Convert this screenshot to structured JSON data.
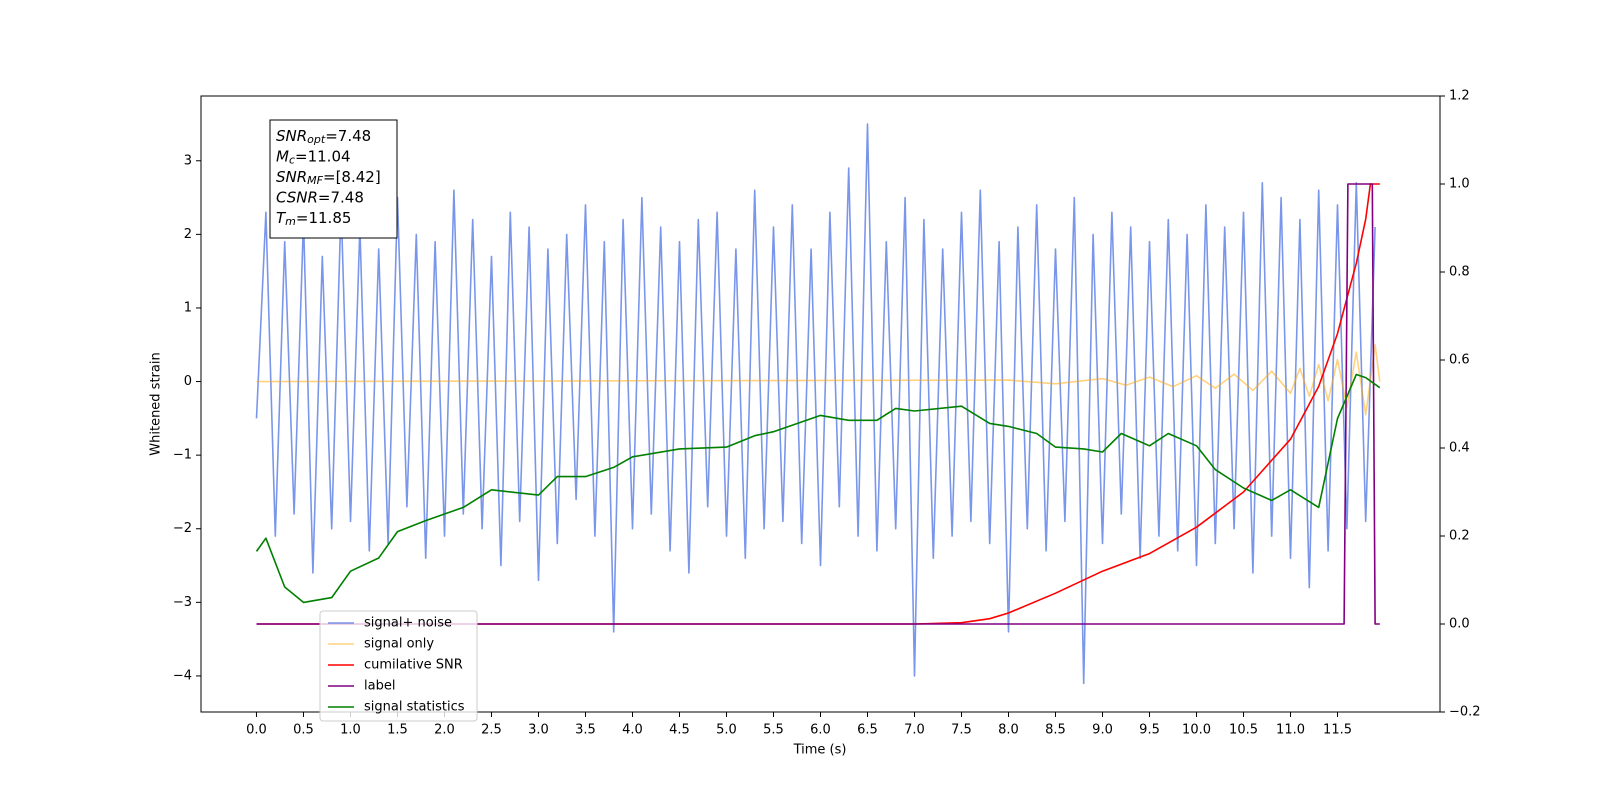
{
  "chart_data": {
    "type": "line",
    "xlabel": "Time (s)",
    "ylabel": "Whitened strain",
    "xlim": [
      -0.59,
      12.59
    ],
    "ylim": [
      -4.49,
      3.88
    ],
    "y2lim": [
      -0.2,
      1.2
    ],
    "xticks": [
      {
        "value": 0,
        "label": "0.0"
      },
      0.5,
      {
        "value": 1,
        "label": "1.0"
      },
      1.5,
      {
        "value": 2,
        "label": "2.0"
      },
      2.5,
      {
        "value": 3,
        "label": "3.0"
      },
      3.5,
      {
        "value": 4,
        "label": "4.0"
      },
      4.5,
      {
        "value": 5,
        "label": "5.0"
      },
      5.5,
      {
        "value": 6,
        "label": "6.0"
      },
      6.5,
      {
        "value": 7,
        "label": "7.0"
      },
      7.5,
      {
        "value": 8,
        "label": "8.0"
      },
      8.5,
      {
        "value": 9,
        "label": "9.0"
      },
      9.5,
      {
        "value": 10,
        "label": "10.0"
      },
      10.5,
      {
        "value": 11,
        "label": "11.0"
      },
      11.5
    ],
    "yticks": [
      {
        "value": -4,
        "label": "−4"
      },
      {
        "value": -3,
        "label": "−3"
      },
      {
        "value": -2,
        "label": "−2"
      },
      {
        "value": -1,
        "label": "−1"
      },
      0,
      1,
      2,
      3
    ],
    "y2ticks": [
      {
        "value": -0.2,
        "label": "−0.2"
      },
      {
        "value": 0,
        "label": "0.0"
      },
      0.2,
      0.4,
      0.6,
      0.8,
      {
        "value": 1,
        "label": "1.0"
      },
      1.2
    ],
    "annotations": [
      {
        "base": "SNR",
        "sub": "opt",
        "value": "=7.48"
      },
      {
        "base": "M",
        "sub": "c",
        "value": "=11.04"
      },
      {
        "base": "SNR",
        "sub": "MF",
        "value": "=[8.42]"
      },
      {
        "base": "CSNR",
        "value": "=7.48"
      },
      {
        "base": "T",
        "sub": "m",
        "value": "=11.85"
      }
    ],
    "series": [
      {
        "name": "signal+ noise",
        "color": "#4169e1",
        "opacity": 0.7,
        "x": [
          0,
          0.1,
          0.2,
          0.3,
          0.4,
          0.5,
          0.6,
          0.7,
          0.8,
          0.9,
          1,
          1.1,
          1.2,
          1.3,
          1.4,
          1.5,
          1.6,
          1.7,
          1.8,
          1.9,
          2,
          2.1,
          2.2,
          2.3,
          2.4,
          2.5,
          2.6,
          2.7,
          2.8,
          2.9,
          3,
          3.1,
          3.2,
          3.3,
          3.4,
          3.5,
          3.6,
          3.7,
          3.8,
          3.9,
          4,
          4.1,
          4.2,
          4.3,
          4.4,
          4.5,
          4.6,
          4.7,
          4.8,
          4.9,
          5,
          5.1,
          5.2,
          5.3,
          5.4,
          5.5,
          5.6,
          5.7,
          5.8,
          5.9,
          6,
          6.1,
          6.2,
          6.3,
          6.4,
          6.5,
          6.6,
          6.7,
          6.8,
          6.9,
          7,
          7.1,
          7.2,
          7.3,
          7.4,
          7.5,
          7.6,
          7.7,
          7.8,
          7.9,
          8,
          8.1,
          8.2,
          8.3,
          8.4,
          8.5,
          8.6,
          8.7,
          8.8,
          8.9,
          9,
          9.1,
          9.2,
          9.3,
          9.4,
          9.5,
          9.6,
          9.7,
          9.8,
          9.9,
          10,
          10.1,
          10.2,
          10.3,
          10.4,
          10.5,
          10.6,
          10.7,
          10.8,
          10.9,
          11,
          11.1,
          11.2,
          11.3,
          11.4,
          11.5,
          11.6,
          11.7,
          11.8,
          11.9
        ],
        "values": [
          -0.5,
          2.3,
          -2.1,
          1.9,
          -1.8,
          2.2,
          -2.6,
          1.7,
          -2.0,
          2.4,
          -1.9,
          2.1,
          -2.3,
          1.8,
          -2.2,
          2.5,
          -1.7,
          2.0,
          -2.4,
          1.9,
          -2.1,
          2.6,
          -1.8,
          2.2,
          -2.0,
          1.7,
          -2.5,
          2.3,
          -1.9,
          2.1,
          -2.7,
          1.8,
          -2.2,
          2.0,
          -1.6,
          2.4,
          -2.1,
          1.9,
          -3.4,
          2.2,
          -2.0,
          2.5,
          -1.8,
          2.1,
          -2.3,
          1.9,
          -2.6,
          2.2,
          -1.7,
          2.3,
          -2.1,
          1.8,
          -2.4,
          2.6,
          -2.0,
          2.1,
          -1.9,
          2.4,
          -2.2,
          1.8,
          -2.5,
          2.3,
          -1.7,
          2.9,
          -2.1,
          3.5,
          -2.3,
          1.9,
          -2.0,
          2.5,
          -4.0,
          2.2,
          -2.4,
          1.8,
          -2.1,
          2.3,
          -1.9,
          2.6,
          -2.2,
          1.9,
          -3.4,
          2.1,
          -2.0,
          2.4,
          -2.3,
          1.8,
          -1.9,
          2.5,
          -4.1,
          2.0,
          -2.2,
          2.3,
          -1.8,
          2.1,
          -2.4,
          1.9,
          -2.1,
          2.2,
          -2.3,
          2.0,
          -2.5,
          2.4,
          -2.2,
          2.1,
          -2.0,
          2.3,
          -2.6,
          2.7,
          -2.1,
          2.5,
          -2.4,
          2.2,
          -2.8,
          2.6,
          -2.3,
          2.4,
          -2.0,
          2.7,
          -1.9,
          2.1
        ]
      },
      {
        "name": "signal only",
        "color": "#ffa500",
        "opacity": 0.5,
        "x": [
          0,
          8,
          8.5,
          9,
          9.25,
          9.5,
          9.75,
          10,
          10.2,
          10.4,
          10.6,
          10.8,
          11,
          11.1,
          11.2,
          11.3,
          11.4,
          11.5,
          11.6,
          11.7,
          11.8,
          11.9,
          11.95
        ],
        "values": [
          0,
          0.02,
          -0.03,
          0.04,
          -0.05,
          0.06,
          -0.07,
          0.08,
          -0.09,
          0.1,
          -0.12,
          0.14,
          -0.16,
          0.18,
          -0.2,
          0.23,
          -0.26,
          0.3,
          -0.35,
          0.4,
          -0.45,
          0.5,
          0
        ]
      },
      {
        "name": "cumilative SNR",
        "color": "#ff0000",
        "axis": "y2",
        "x": [
          0,
          7,
          7.5,
          7.8,
          8,
          8.5,
          9,
          9.5,
          10,
          10.5,
          11,
          11.3,
          11.5,
          11.7,
          11.8,
          11.85,
          11.95
        ],
        "values": [
          0,
          0,
          0.003,
          0.012,
          0.025,
          0.07,
          0.12,
          0.16,
          0.22,
          0.3,
          0.42,
          0.54,
          0.66,
          0.82,
          0.92,
          1,
          1
        ]
      },
      {
        "name": "label",
        "color": "#800080",
        "axis": "y2",
        "x": [
          0,
          11.57,
          11.61,
          11.87,
          11.9,
          11.95
        ],
        "values": [
          0,
          0,
          1,
          1,
          0,
          0
        ]
      },
      {
        "name": "signal statistics",
        "color": "#008000",
        "axis": "y2",
        "x": [
          0,
          0.1,
          0.3,
          0.5,
          0.8,
          1,
          1.3,
          1.5,
          1.8,
          2.2,
          2.5,
          3,
          3.2,
          3.5,
          3.8,
          4,
          4.5,
          5,
          5.3,
          5.5,
          6,
          6.3,
          6.6,
          6.8,
          7,
          7.5,
          7.8,
          8,
          8.3,
          8.5,
          8.8,
          9,
          9.2,
          9.5,
          9.7,
          10,
          10.2,
          10.5,
          10.8,
          11,
          11.3,
          11.5,
          11.7,
          11.8,
          11.95
        ],
        "values": [
          0.165,
          0.195,
          0.084,
          0.049,
          0.06,
          0.12,
          0.15,
          0.21,
          0.235,
          0.265,
          0.305,
          0.293,
          0.335,
          0.335,
          0.356,
          0.38,
          0.398,
          0.402,
          0.428,
          0.437,
          0.474,
          0.463,
          0.463,
          0.49,
          0.484,
          0.495,
          0.456,
          0.449,
          0.433,
          0.402,
          0.398,
          0.391,
          0.433,
          0.405,
          0.433,
          0.405,
          0.351,
          0.309,
          0.281,
          0.305,
          0.265,
          0.467,
          0.567,
          0.56,
          0.537
        ]
      }
    ]
  }
}
